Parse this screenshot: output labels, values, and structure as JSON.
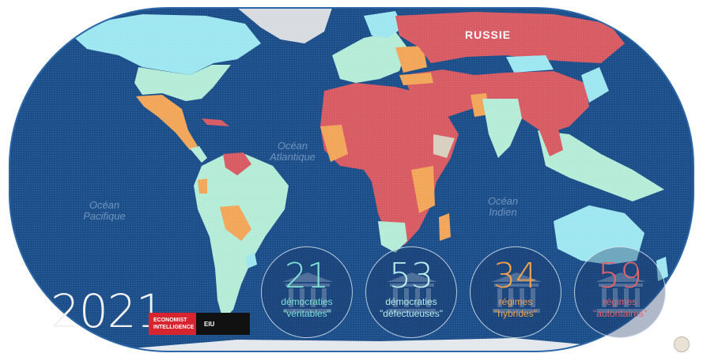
{
  "year": "2021",
  "country_label": "RUSSIE",
  "oceans": {
    "atlantic": [
      "Océan",
      "Atlantique"
    ],
    "pacific": [
      "Océan",
      "Pacifique"
    ],
    "indian": [
      "Océan",
      "Indien"
    ]
  },
  "source": {
    "brand_line1": "ECONOMIST",
    "brand_line2": "INTELLIGENCE",
    "abbr": "EIU"
  },
  "legend": [
    {
      "number": "21",
      "line1": "démocraties",
      "line2": "\"véritables\"",
      "color": "#7fe0d2",
      "category": "full"
    },
    {
      "number": "53",
      "line1": "démocraties",
      "line2": "\"défectueuses\"",
      "color": "#b9ecec",
      "category": "flawed"
    },
    {
      "number": "34",
      "line1": "régimes",
      "line2": "\"hybrides\"",
      "color": "#f5a24e",
      "category": "hybrid"
    },
    {
      "number": "59",
      "line1": "régimes",
      "line2": "\"autoritaires\"",
      "color": "#e2636b",
      "category": "authoritarian"
    }
  ],
  "colors": {
    "ocean": "#1c4f8a",
    "ocean_rim": "#2a66a8",
    "full_democracy": "#9ee6f0",
    "flawed_democracy": "#b5ecd8",
    "hybrid": "#f2a65a",
    "authoritarian": "#d85a63",
    "no_data": "#d8cfc0",
    "ice": "#e4e8ec"
  }
}
